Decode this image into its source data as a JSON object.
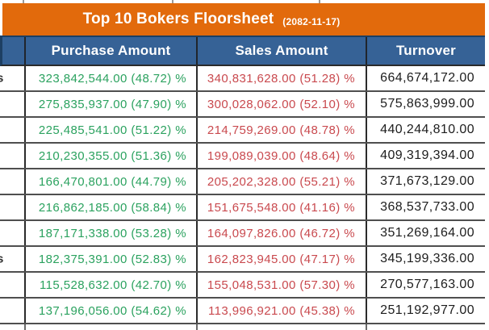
{
  "title_bar": {
    "title": "Top 10 Bokers Floorsheet",
    "date": "(2082-11-17)"
  },
  "table": {
    "headers": {
      "broker": "",
      "purchase": "Purchase Amount",
      "sales": "Sales Amount",
      "turnover": "Turnover"
    },
    "rows": [
      {
        "broker_fragment": "s",
        "purchase": "323,842,544.00 (48.72) %",
        "sales": "340,831,628.00 (51.28) %",
        "turnover": "664,674,172.00"
      },
      {
        "broker_fragment": "",
        "purchase": "275,835,937.00 (47.90) %",
        "sales": "300,028,062.00 (52.10) %",
        "turnover": "575,863,999.00"
      },
      {
        "broker_fragment": "",
        "purchase": "225,485,541.00 (51.22) %",
        "sales": "214,759,269.00 (48.78) %",
        "turnover": "440,244,810.00"
      },
      {
        "broker_fragment": "",
        "purchase": "210,230,355.00 (51.36) %",
        "sales": "199,089,039.00 (48.64) %",
        "turnover": "409,319,394.00"
      },
      {
        "broker_fragment": "",
        "purchase": "166,470,801.00 (44.79) %",
        "sales": "205,202,328.00 (55.21) %",
        "turnover": "371,673,129.00"
      },
      {
        "broker_fragment": "",
        "purchase": "216,862,185.00 (58.84) %",
        "sales": "151,675,548.00 (41.16) %",
        "turnover": "368,537,733.00"
      },
      {
        "broker_fragment": "",
        "purchase": "187,171,338.00 (53.28) %",
        "sales": "164,097,826.00 (46.72) %",
        "turnover": "351,269,164.00"
      },
      {
        "broker_fragment": "s",
        "purchase": "182,375,391.00 (52.83) %",
        "sales": "162,823,945.00 (47.17) %",
        "turnover": "345,199,336.00"
      },
      {
        "broker_fragment": "",
        "purchase": "115,528,632.00 (42.70) %",
        "sales": "155,048,531.00 (57.30) %",
        "turnover": "270,577,163.00"
      },
      {
        "broker_fragment": "",
        "purchase": "137,196,056.00 (54.62) %",
        "sales": "113,996,921.00 (45.38) %",
        "turnover": "251,192,977.00"
      }
    ]
  },
  "chart_data": {
    "type": "table",
    "title": "Top 10 Bokers Floorsheet",
    "date": "2082-11-17",
    "columns": [
      "Purchase Amount",
      "Sales Amount",
      "Turnover"
    ],
    "rows": [
      {
        "purchase_amount": 323842544.0,
        "purchase_pct": 48.72,
        "sales_amount": 340831628.0,
        "sales_pct": 51.28,
        "turnover": 664674172.0
      },
      {
        "purchase_amount": 275835937.0,
        "purchase_pct": 47.9,
        "sales_amount": 300028062.0,
        "sales_pct": 52.1,
        "turnover": 575863999.0
      },
      {
        "purchase_amount": 225485541.0,
        "purchase_pct": 51.22,
        "sales_amount": 214759269.0,
        "sales_pct": 48.78,
        "turnover": 440244810.0
      },
      {
        "purchase_amount": 210230355.0,
        "purchase_pct": 51.36,
        "sales_amount": 199089039.0,
        "sales_pct": 48.64,
        "turnover": 409319394.0
      },
      {
        "purchase_amount": 166470801.0,
        "purchase_pct": 44.79,
        "sales_amount": 205202328.0,
        "sales_pct": 55.21,
        "turnover": 371673129.0
      },
      {
        "purchase_amount": 216862185.0,
        "purchase_pct": 58.84,
        "sales_amount": 151675548.0,
        "sales_pct": 41.16,
        "turnover": 368537733.0
      },
      {
        "purchase_amount": 187171338.0,
        "purchase_pct": 53.28,
        "sales_amount": 164097826.0,
        "sales_pct": 46.72,
        "turnover": 351269164.0
      },
      {
        "purchase_amount": 182375391.0,
        "purchase_pct": 52.83,
        "sales_amount": 162823945.0,
        "sales_pct": 47.17,
        "turnover": 345199336.0
      },
      {
        "purchase_amount": 115528632.0,
        "purchase_pct": 42.7,
        "sales_amount": 155048531.0,
        "sales_pct": 57.3,
        "turnover": 270577163.0
      },
      {
        "purchase_amount": 137196056.0,
        "purchase_pct": 54.62,
        "sales_amount": 113996921.0,
        "sales_pct": 45.38,
        "turnover": 251192977.0
      }
    ]
  },
  "colors": {
    "title_bar_bg": "#E26A0C",
    "header_bg": "#366296",
    "purchase_text": "#2BA25F",
    "sales_text": "#C9494E",
    "turnover_text": "#1D1D1D",
    "grid_line": "#4F4F4F"
  }
}
